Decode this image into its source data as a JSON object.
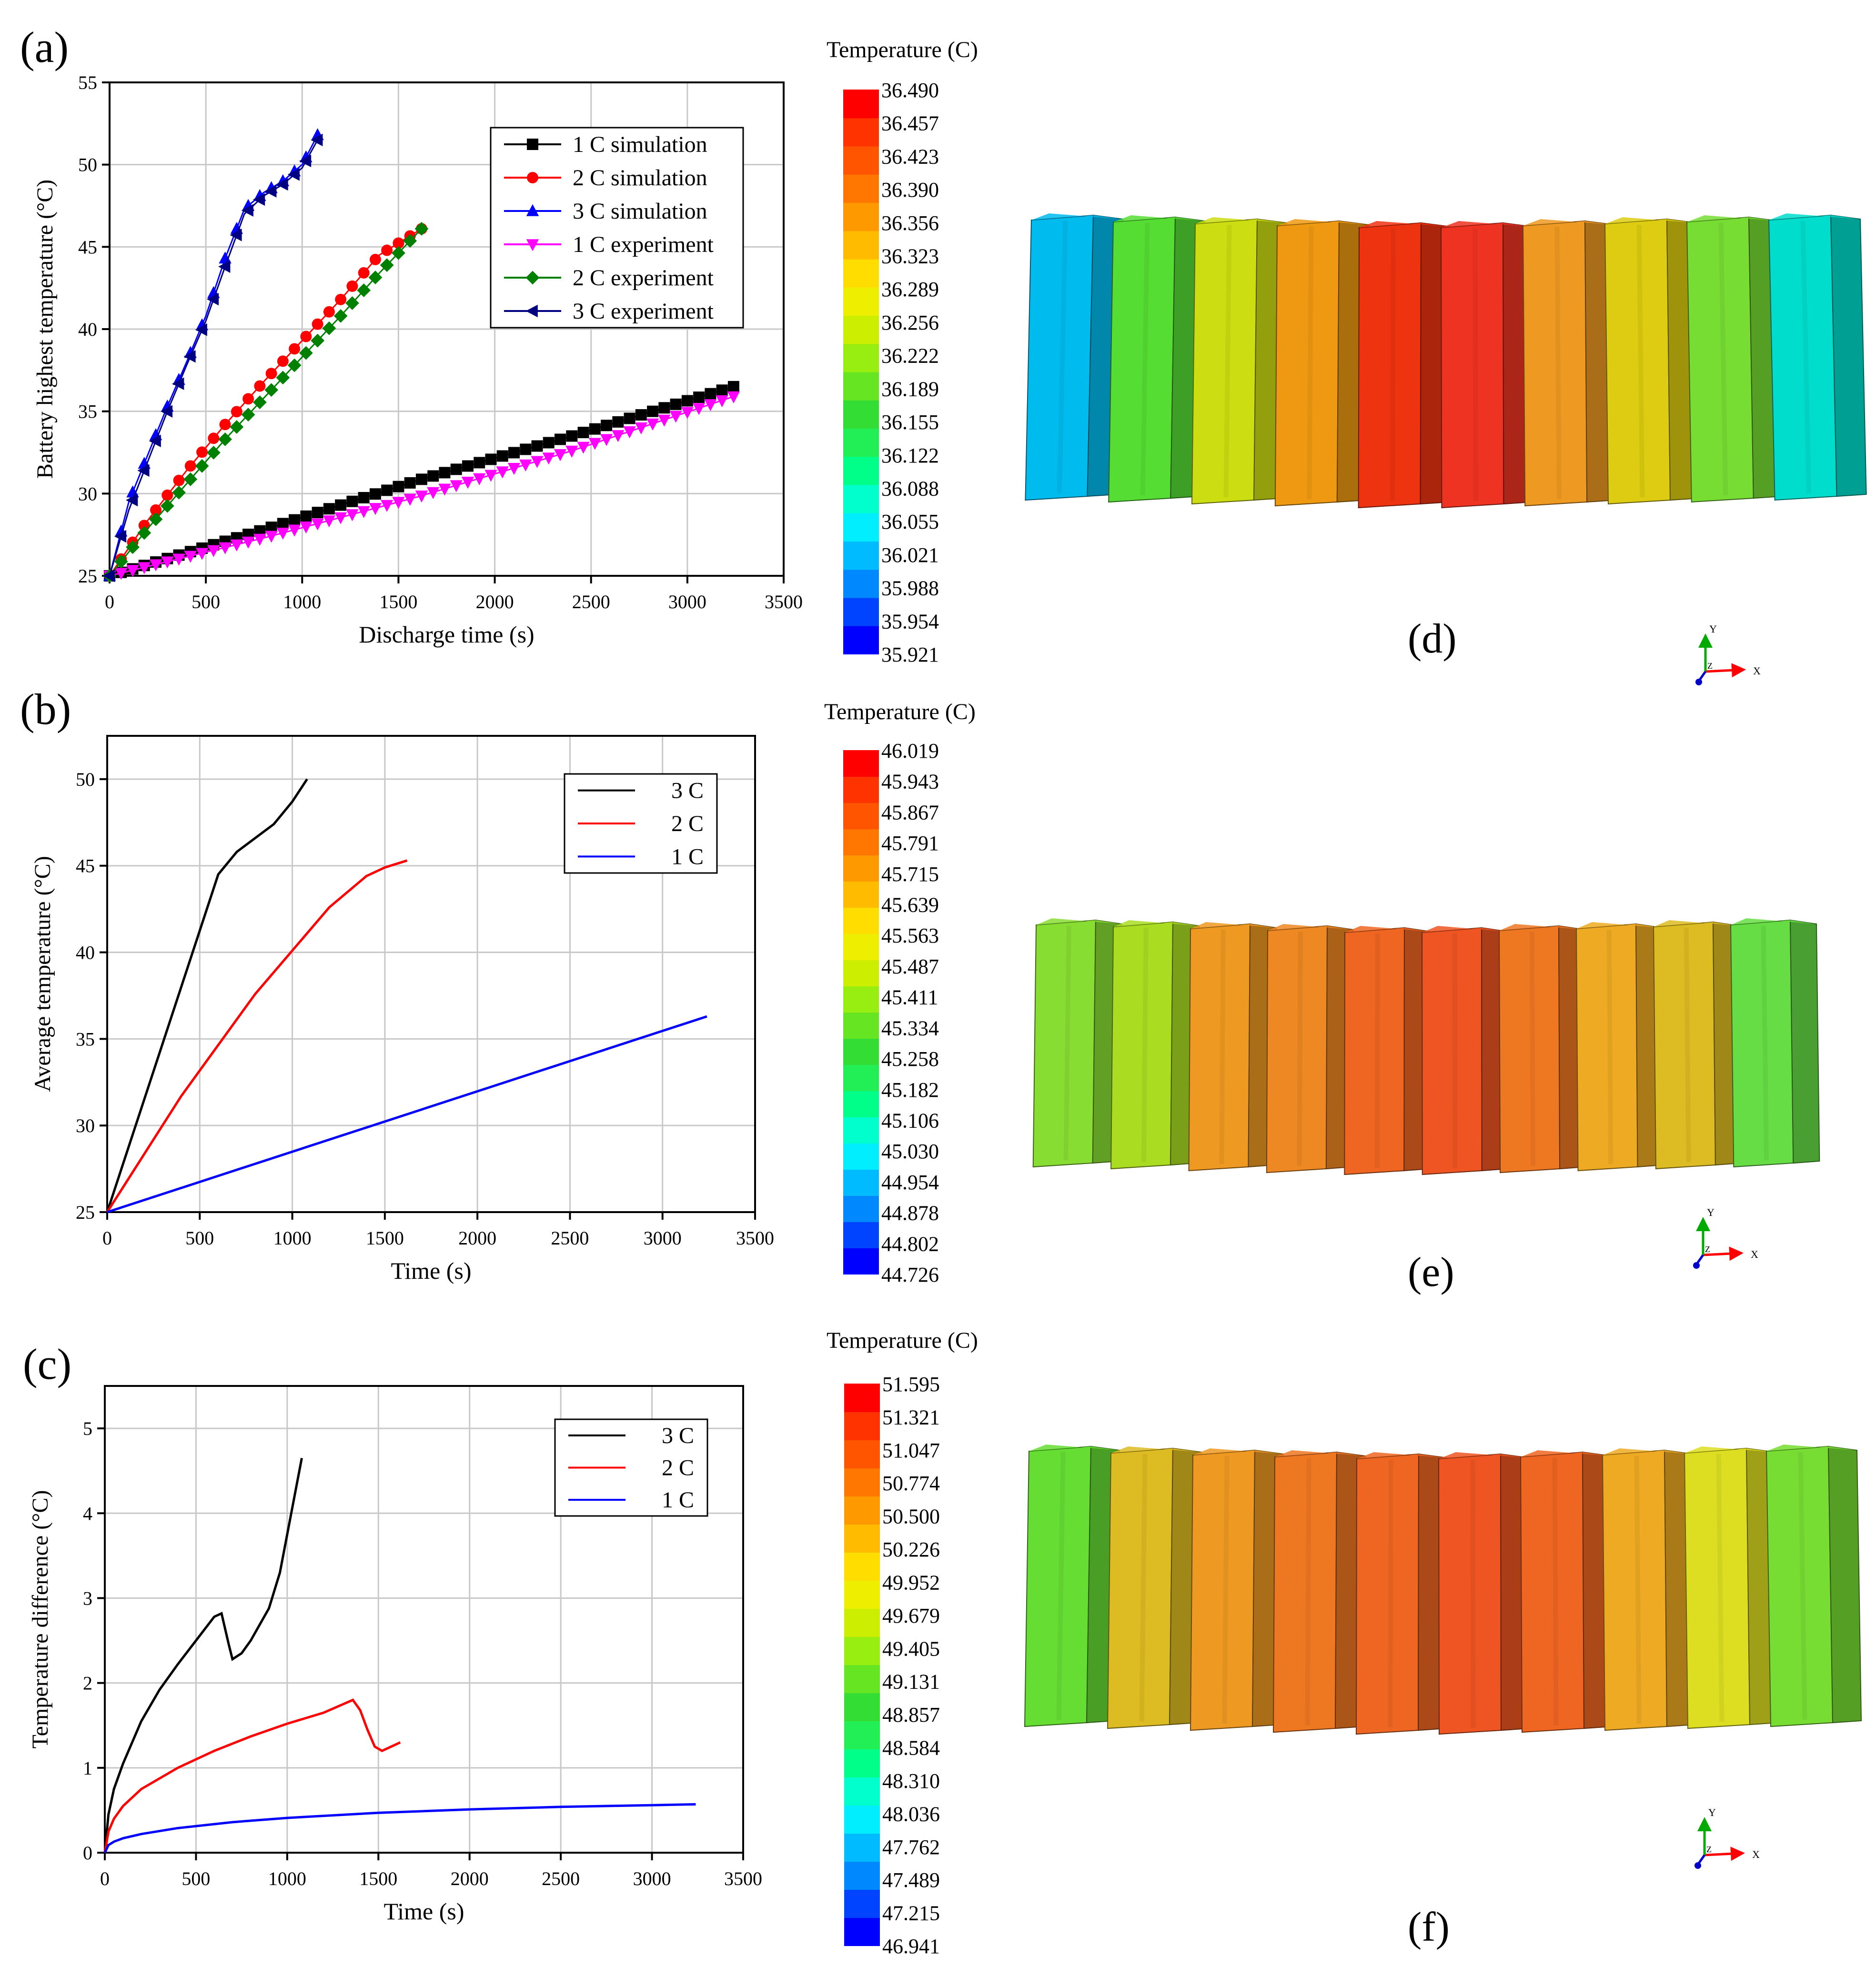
{
  "colors": {
    "black": "#000000",
    "red": "#ff0000",
    "blue": "#0000ff",
    "magenta": "#ff00ff",
    "green": "#008000",
    "navy": "#000080",
    "grid": "#c8c8c8"
  },
  "colorbar_palette": [
    "#0000ff",
    "#0044ff",
    "#0088ff",
    "#00bbff",
    "#00eeff",
    "#00ffcc",
    "#00ff88",
    "#22ee55",
    "#33dd33",
    "#66e622",
    "#99ee11",
    "#ccee00",
    "#eeee00",
    "#ffdd00",
    "#ffbb00",
    "#ff9900",
    "#ff7700",
    "#ff5500",
    "#ff3300",
    "#ff0000"
  ],
  "chart_data": [
    {
      "id": "a",
      "panel_label": "(a)",
      "type": "scatter",
      "title": "",
      "xlabel": "Discharge time (s)",
      "ylabel": "Battery highest temperature (°C)",
      "xlim": [
        0,
        3500
      ],
      "ylim": [
        25,
        55
      ],
      "xticks": [
        0,
        500,
        1000,
        1500,
        2000,
        2500,
        3000,
        3500
      ],
      "yticks": [
        25,
        30,
        35,
        40,
        45,
        50,
        55
      ],
      "grid": true,
      "legend_position": "top-right",
      "series": [
        {
          "name": "1 C simulation",
          "color": "#000000",
          "marker": "square",
          "x": [
            0,
            800,
            1600,
            2400,
            3240
          ],
          "y": [
            25,
            27.8,
            30.8,
            33.5,
            36.5
          ]
        },
        {
          "name": "2 C simulation",
          "color": "#ff0000",
          "marker": "circle",
          "x": [
            0,
            200,
            400,
            600,
            800,
            1000,
            1200,
            1400,
            1620
          ],
          "y": [
            25,
            28.4,
            31.4,
            34.2,
            36.8,
            39.3,
            41.8,
            44.5,
            46.1
          ]
        },
        {
          "name": "3 C simulation",
          "color": "#0000ff",
          "marker": "triangle-up",
          "x": [
            0,
            100,
            200,
            300,
            400,
            500,
            600,
            700,
            800,
            900,
            1000,
            1080
          ],
          "y": [
            25,
            29.5,
            32.4,
            35.3,
            38,
            40.8,
            44.3,
            47.3,
            48.3,
            49,
            50,
            51.8
          ]
        },
        {
          "name": "1 C experiment",
          "color": "#ff00ff",
          "marker": "triangle-down",
          "x": [
            0,
            800,
            1600,
            2400,
            3240
          ],
          "y": [
            25,
            27.3,
            29.8,
            32.6,
            35.9
          ]
        },
        {
          "name": "2 C experiment",
          "color": "#008000",
          "marker": "diamond",
          "x": [
            0,
            200,
            400,
            600,
            800,
            1000,
            1200,
            1400,
            1620
          ],
          "y": [
            25,
            27.9,
            30.6,
            33.3,
            35.8,
            38.3,
            40.8,
            43.4,
            46.1
          ]
        },
        {
          "name": "3 C experiment",
          "color": "#000080",
          "marker": "triangle-left",
          "x": [
            0,
            100,
            200,
            300,
            400,
            500,
            600,
            700,
            800,
            900,
            1000,
            1080
          ],
          "y": [
            25,
            29,
            32,
            35,
            37.8,
            40.5,
            43.8,
            47,
            48.1,
            48.8,
            49.8,
            51.5
          ]
        }
      ]
    },
    {
      "id": "b",
      "panel_label": "(b)",
      "type": "line",
      "title": "",
      "xlabel": "Time (s)",
      "ylabel": "Average temperature (°C)",
      "xlim": [
        0,
        3500
      ],
      "ylim": [
        25,
        52.5
      ],
      "xticks": [
        0,
        500,
        1000,
        1500,
        2000,
        2500,
        3000,
        3500
      ],
      "yticks": [
        25,
        30,
        35,
        40,
        45,
        50
      ],
      "grid": true,
      "legend_position": "top-right",
      "series": [
        {
          "name": "3 C",
          "color": "#000000",
          "x": [
            0,
            200,
            400,
            600,
            700,
            800,
            900,
            1000,
            1080
          ],
          "y": [
            25,
            31.5,
            38,
            44.5,
            45.8,
            46.6,
            47.4,
            48.7,
            50
          ]
        },
        {
          "name": "2 C",
          "color": "#ff0000",
          "x": [
            0,
            400,
            800,
            1200,
            1400,
            1500,
            1620
          ],
          "y": [
            25,
            31.7,
            37.6,
            42.6,
            44.4,
            44.9,
            45.3
          ]
        },
        {
          "name": "1 C",
          "color": "#0000ff",
          "x": [
            0,
            3240
          ],
          "y": [
            25,
            36.3
          ]
        }
      ]
    },
    {
      "id": "c",
      "panel_label": "(c)",
      "type": "line",
      "title": "",
      "xlabel": "Time (s)",
      "ylabel": "Temperature difference (°C)",
      "xlim": [
        0,
        3500
      ],
      "ylim": [
        0,
        5.5
      ],
      "xticks": [
        0,
        500,
        1000,
        1500,
        2000,
        2500,
        3000,
        3500
      ],
      "yticks": [
        0,
        1,
        2,
        3,
        4,
        5
      ],
      "grid": true,
      "legend_position": "top-right",
      "series": [
        {
          "name": "3 C",
          "color": "#000000",
          "x": [
            0,
            20,
            50,
            100,
            200,
            300,
            400,
            500,
            600,
            640,
            680,
            700,
            750,
            800,
            900,
            960,
            1000,
            1040,
            1080
          ],
          "y": [
            0,
            0.45,
            0.75,
            1.05,
            1.55,
            1.92,
            2.22,
            2.5,
            2.78,
            2.82,
            2.45,
            2.28,
            2.35,
            2.5,
            2.88,
            3.3,
            3.75,
            4.2,
            4.65
          ]
        },
        {
          "name": "2 C",
          "color": "#ff0000",
          "x": [
            0,
            20,
            50,
            100,
            200,
            400,
            600,
            800,
            1000,
            1200,
            1360,
            1400,
            1440,
            1480,
            1520,
            1560,
            1620
          ],
          "y": [
            0,
            0.25,
            0.4,
            0.55,
            0.75,
            1.0,
            1.2,
            1.37,
            1.52,
            1.65,
            1.8,
            1.68,
            1.45,
            1.25,
            1.2,
            1.24,
            1.3
          ]
        },
        {
          "name": "1 C",
          "color": "#0000ff",
          "x": [
            0,
            20,
            50,
            100,
            200,
            400,
            700,
            1000,
            1500,
            2000,
            2500,
            3000,
            3240
          ],
          "y": [
            0,
            0.09,
            0.13,
            0.17,
            0.22,
            0.29,
            0.36,
            0.41,
            0.47,
            0.51,
            0.54,
            0.56,
            0.57
          ]
        }
      ]
    }
  ],
  "contours": [
    {
      "id": "d",
      "panel_label": "(d)",
      "colorbar_title": "Temperature (C)",
      "colorbar_values": [
        "36.490",
        "36.457",
        "36.423",
        "36.390",
        "36.356",
        "36.323",
        "36.289",
        "36.256",
        "36.222",
        "36.189",
        "36.155",
        "36.122",
        "36.088",
        "36.055",
        "36.021",
        "35.988",
        "35.954",
        "35.921"
      ],
      "cell_colors": [
        "#00bbee",
        "#55dd33",
        "#ccdd11",
        "#ee9911",
        "#ee3311",
        "#ee3322",
        "#ee9922",
        "#ddcc11",
        "#77dd33",
        "#00ddcc"
      ],
      "axis_labels": {
        "x": "X",
        "y": "Y",
        "z": "Z"
      }
    },
    {
      "id": "e",
      "panel_label": "(e)",
      "colorbar_title": "Temperature (C)",
      "colorbar_values": [
        "46.019",
        "45.943",
        "45.867",
        "45.791",
        "45.715",
        "45.639",
        "45.563",
        "45.487",
        "45.411",
        "45.334",
        "45.258",
        "45.182",
        "45.106",
        "45.030",
        "44.954",
        "44.878",
        "44.802",
        "44.726"
      ],
      "cell_colors": [
        "#88dd33",
        "#aadd22",
        "#ee9922",
        "#ee8822",
        "#ee6622",
        "#ee5522",
        "#ee7722",
        "#eeaa22",
        "#ddbb22",
        "#66dd44"
      ],
      "axis_labels": {
        "x": "X",
        "y": "Y",
        "z": "Z"
      }
    },
    {
      "id": "f",
      "panel_label": "(f)",
      "colorbar_title": "Temperature (C)",
      "colorbar_values": [
        "51.595",
        "51.321",
        "51.047",
        "50.774",
        "50.500",
        "50.226",
        "49.952",
        "49.679",
        "49.405",
        "49.131",
        "48.857",
        "48.584",
        "48.310",
        "48.036",
        "47.762",
        "47.489",
        "47.215",
        "46.941"
      ],
      "cell_colors": [
        "#66dd33",
        "#ddbb22",
        "#ee9922",
        "#ee7722",
        "#ee6622",
        "#ee5522",
        "#ee6622",
        "#eeaa22",
        "#dddd22",
        "#77dd33"
      ],
      "axis_labels": {
        "x": "X",
        "y": "Y",
        "z": "Z"
      }
    }
  ]
}
